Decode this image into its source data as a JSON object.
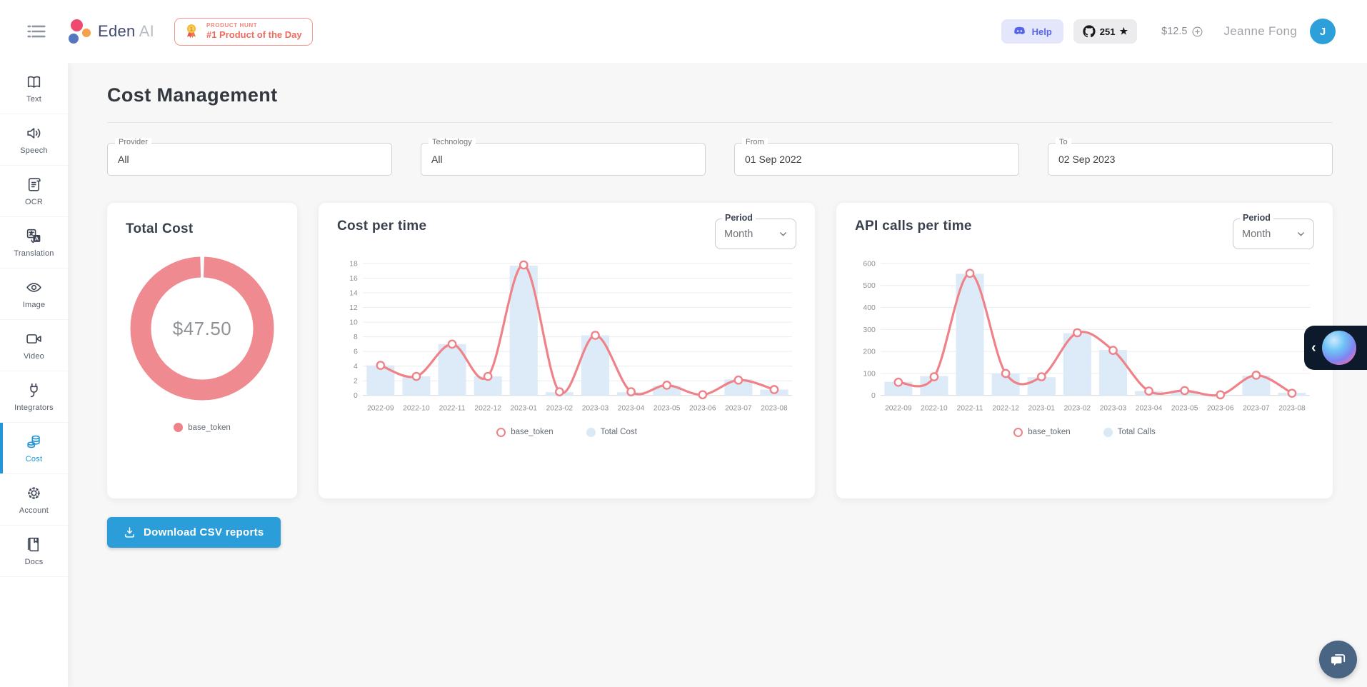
{
  "header": {
    "logo_text": "Eden",
    "logo_suffix": "AI",
    "product_hunt": {
      "kicker": "PRODUCT HUNT",
      "title": "#1 Product of the Day"
    },
    "help_label": "Help",
    "github_stars": "251",
    "star_glyph": "★",
    "balance": "$12.5",
    "user_name": "Jeanne Fong",
    "avatar_initial": "J"
  },
  "sidebar": {
    "items": [
      {
        "label": "Text",
        "icon": "book-open-icon",
        "active": false
      },
      {
        "label": "Speech",
        "icon": "speaker-icon",
        "active": false
      },
      {
        "label": "OCR",
        "icon": "scroll-icon",
        "active": false
      },
      {
        "label": "Translation",
        "icon": "translate-icon",
        "active": false
      },
      {
        "label": "Image",
        "icon": "eye-icon",
        "active": false
      },
      {
        "label": "Video",
        "icon": "video-camera-icon",
        "active": false
      },
      {
        "label": "Integrators",
        "icon": "plug-icon",
        "active": false
      },
      {
        "label": "Cost",
        "icon": "coins-icon",
        "active": true
      },
      {
        "label": "Account",
        "icon": "gear-icon",
        "active": false
      },
      {
        "label": "Docs",
        "icon": "book-icon",
        "active": false
      }
    ]
  },
  "page": {
    "title": "Cost Management"
  },
  "filters": [
    {
      "label": "Provider",
      "value": "All"
    },
    {
      "label": "Technology",
      "value": "All"
    },
    {
      "label": "From",
      "value": "01 Sep 2022"
    },
    {
      "label": "To",
      "value": "02 Sep 2023"
    }
  ],
  "cards": {
    "total_cost": {
      "title": "Total Cost",
      "center_value": "$47.50",
      "legend": [
        {
          "label": "base_token",
          "swatch": "solid-pink"
        }
      ]
    },
    "cost_per_time": {
      "title": "Cost per time",
      "period_label": "Period",
      "period_value": "Month",
      "legend": [
        {
          "label": "base_token",
          "swatch": "ring-pink"
        },
        {
          "label": "Total Cost",
          "swatch": "solid-blue"
        }
      ]
    },
    "api_calls": {
      "title": "API calls per time",
      "period_label": "Period",
      "period_value": "Month",
      "legend": [
        {
          "label": "base_token",
          "swatch": "ring-pink"
        },
        {
          "label": "Total Calls",
          "swatch": "solid-blue"
        }
      ]
    }
  },
  "actions": {
    "download_csv": "Download CSV reports"
  },
  "colors": {
    "accent_blue": "#2b9dd9",
    "sidebar_active_blue": "#2196d9",
    "line_pink": "#ef8289",
    "bar_blue": "#dcebf7",
    "donut_pink": "#ef8a90",
    "help_indigo": "#5766e8"
  },
  "chart_data": [
    {
      "id": "total_cost_donut",
      "type": "pie",
      "title": "Total Cost",
      "labels": [
        "base_token"
      ],
      "values": [
        47.5
      ],
      "center_label": "$47.50"
    },
    {
      "id": "cost_per_time",
      "type": "line+bar",
      "title": "Cost per time",
      "categories": [
        "2022-09",
        "2022-10",
        "2022-11",
        "2022-12",
        "2023-01",
        "2023-02",
        "2023-03",
        "2023-04",
        "2023-05",
        "2023-06",
        "2023-07",
        "2023-08"
      ],
      "series": [
        {
          "name": "base_token",
          "type": "line",
          "values": [
            4.1,
            2.6,
            7.0,
            2.6,
            17.8,
            0.5,
            8.2,
            0.5,
            1.4,
            0.1,
            2.1,
            0.8
          ]
        },
        {
          "name": "Total Cost",
          "type": "bar",
          "values": [
            4.1,
            2.6,
            7.0,
            2.6,
            17.7,
            0.45,
            8.2,
            0.45,
            1.3,
            0.05,
            2.2,
            0.8
          ]
        }
      ],
      "ylim": [
        0,
        18
      ],
      "yticks": [
        0,
        2,
        4,
        6,
        8,
        10,
        12,
        14,
        16,
        18
      ],
      "grid": true,
      "legend_position": "bottom"
    },
    {
      "id": "api_calls_per_time",
      "type": "line+bar",
      "title": "API calls per time",
      "categories": [
        "2022-09",
        "2022-10",
        "2022-11",
        "2022-12",
        "2023-01",
        "2023-02",
        "2023-03",
        "2023-04",
        "2023-05",
        "2023-06",
        "2023-07",
        "2023-08"
      ],
      "series": [
        {
          "name": "base_token",
          "type": "line",
          "values": [
            60,
            85,
            555,
            100,
            85,
            285,
            205,
            20,
            22,
            3,
            92,
            10
          ]
        },
        {
          "name": "Total Calls",
          "type": "bar",
          "values": [
            62,
            88,
            553,
            100,
            83,
            283,
            207,
            20,
            20,
            3,
            90,
            12
          ]
        }
      ],
      "ylim": [
        0,
        600
      ],
      "yticks": [
        0,
        100,
        200,
        300,
        400,
        500,
        600
      ],
      "grid": true,
      "legend_position": "bottom"
    }
  ]
}
